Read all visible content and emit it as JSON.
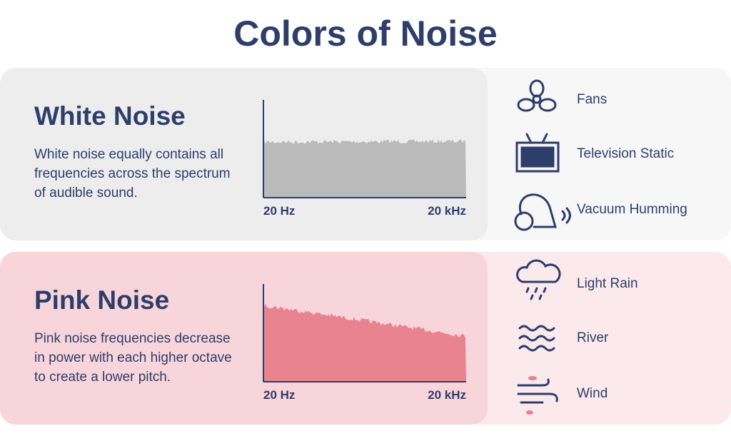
{
  "title": "Colors of Noise",
  "sections": [
    {
      "heading": "White Noise",
      "description": "White noise equally contains all frequencies across the spectrum of audible sound.",
      "axis_labels": [
        "20 Hz",
        "20 kHz"
      ],
      "examples": [
        "Fans",
        "Television Static",
        "Vacuum Humming"
      ]
    },
    {
      "heading": "Pink Noise",
      "description": "Pink noise frequencies decrease in power with each higher octave to create a lower pitch.",
      "axis_labels": [
        "20 Hz",
        "20 kHz"
      ],
      "examples": [
        "Light Rain",
        "River",
        "Wind"
      ]
    }
  ]
}
